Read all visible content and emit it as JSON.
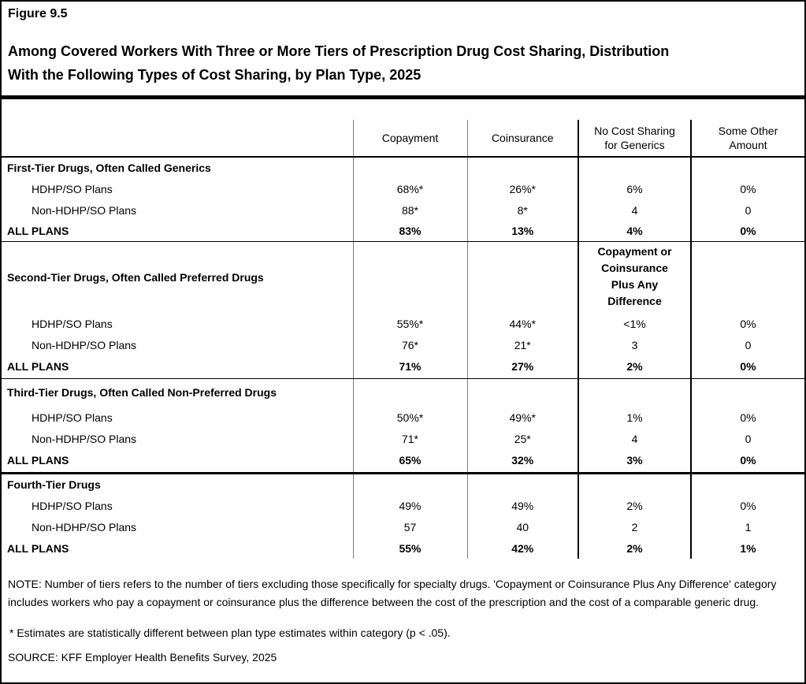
{
  "figure": {
    "label": "Figure 9.5",
    "title": "Among Covered Workers With Three or More Tiers of Prescription Drug Cost Sharing, Distribution With the Following Types of Cost Sharing, by Plan Type, 2025",
    "title_lines": [
      "Among Covered Workers With Three or More Tiers of Prescription Drug Cost Sharing, Distribution",
      "With the Following Types of Cost Sharing, by Plan Type, 2025"
    ]
  },
  "chart_data": {
    "type": "table",
    "title": "Among Covered Workers With Three or More Tiers of Prescription Drug Cost Sharing, Distribution With the Following Types of Cost Sharing, by Plan Type, 2025",
    "columns": [
      "Copayment",
      "Coinsurance",
      "No Cost Sharing for Generics",
      "Some Other Amount"
    ],
    "column_header_lines": {
      "copayment": "Copayment",
      "coinsurance": "Coinsurance",
      "no_cost": [
        "No Cost Sharing",
        "for Generics"
      ],
      "other": [
        "Some Other",
        "Amount"
      ]
    },
    "sections": [
      {
        "title": "First-Tier Drugs, Often Called Generics",
        "rows": [
          {
            "label": "HDHP/SO Plans",
            "values": [
              "68%*",
              "26%*",
              "6%",
              "0%"
            ]
          },
          {
            "label": "Non-HDHP/SO Plans",
            "values": [
              "88*",
              "8*",
              "4",
              "0"
            ]
          },
          {
            "label": "ALL PLANS",
            "values": [
              "83%",
              "13%",
              "4%",
              "0%"
            ]
          }
        ]
      },
      {
        "title": "Second-Tier Drugs, Often Called Preferred Drugs",
        "special_header": "Copayment or Coinsurance Plus Any Difference",
        "special_header_lines": [
          "Copayment or",
          "Coinsurance",
          "Plus Any",
          "Difference"
        ],
        "rows": [
          {
            "label": "HDHP/SO Plans",
            "values": [
              "55%*",
              "44%*",
              "<1%",
              "0%"
            ]
          },
          {
            "label": "Non-HDHP/SO Plans",
            "values": [
              "76*",
              "21*",
              "3",
              "0"
            ]
          },
          {
            "label": "ALL PLANS",
            "values": [
              "71%",
              "27%",
              "2%",
              "0%"
            ]
          }
        ]
      },
      {
        "title": "Third-Tier Drugs, Often Called Non-Preferred Drugs",
        "rows": [
          {
            "label": "HDHP/SO Plans",
            "values": [
              "50%*",
              "49%*",
              "1%",
              "0%"
            ]
          },
          {
            "label": "Non-HDHP/SO Plans",
            "values": [
              "71*",
              "25*",
              "4",
              "0"
            ]
          },
          {
            "label": "ALL PLANS",
            "values": [
              "65%",
              "32%",
              "3%",
              "0%"
            ]
          }
        ]
      },
      {
        "title": "Fourth-Tier Drugs",
        "rows": [
          {
            "label": "HDHP/SO Plans",
            "values": [
              "49%",
              "49%",
              "2%",
              "0%"
            ]
          },
          {
            "label": "Non-HDHP/SO Plans",
            "values": [
              "57",
              "40",
              "2",
              "1"
            ]
          },
          {
            "label": "ALL PLANS",
            "values": [
              "55%",
              "42%",
              "2%",
              "1%"
            ]
          }
        ]
      }
    ]
  },
  "notes": {
    "note": "NOTE: Number of tiers refers to the number of tiers excluding those specifically for specialty drugs. 'Copayment or Coinsurance Plus Any Difference' category includes workers who pay a copayment or coinsurance plus the difference between the cost of the prescription and the cost of a comparable generic drug.",
    "footnote": "* Estimates are statistically different between plan type estimates within category (p < .05).",
    "source": "SOURCE: KFF Employer Health Benefits Survey, 2025"
  }
}
